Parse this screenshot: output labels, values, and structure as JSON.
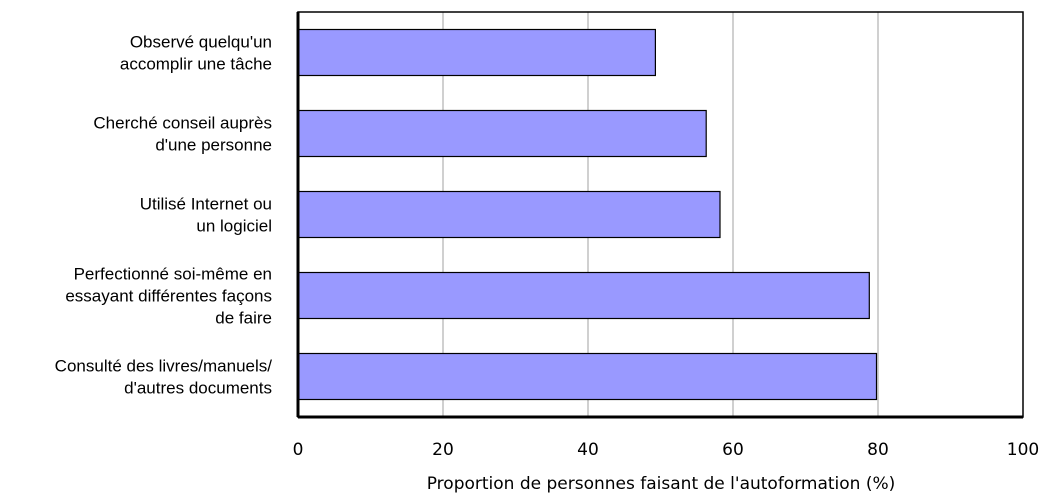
{
  "chart_data": {
    "type": "bar",
    "orientation": "horizontal",
    "categories": [
      [
        "Observé quelqu'un",
        "accomplir une tâche"
      ],
      [
        "Cherché conseil auprès",
        "d'une personne"
      ],
      [
        "Utilisé Internet ou",
        "un logiciel"
      ],
      [
        "Perfectionné soi-même en",
        "essayant différentes façons",
        "de faire"
      ],
      [
        "Consulté des livres/manuels/",
        "d'autres documents"
      ]
    ],
    "values": [
      49.3,
      56.3,
      58.2,
      78.8,
      79.8
    ],
    "xlabel": "Proportion de personnes faisant de l'autoformation (%)",
    "ylabel": "",
    "xlim": [
      0,
      100
    ],
    "xticks": [
      0,
      20,
      40,
      60,
      80,
      100
    ],
    "grid": "vertical",
    "bar_color": "#9999ff",
    "bar_edge_color": "#000000",
    "grid_color": "#c0c0c0"
  }
}
